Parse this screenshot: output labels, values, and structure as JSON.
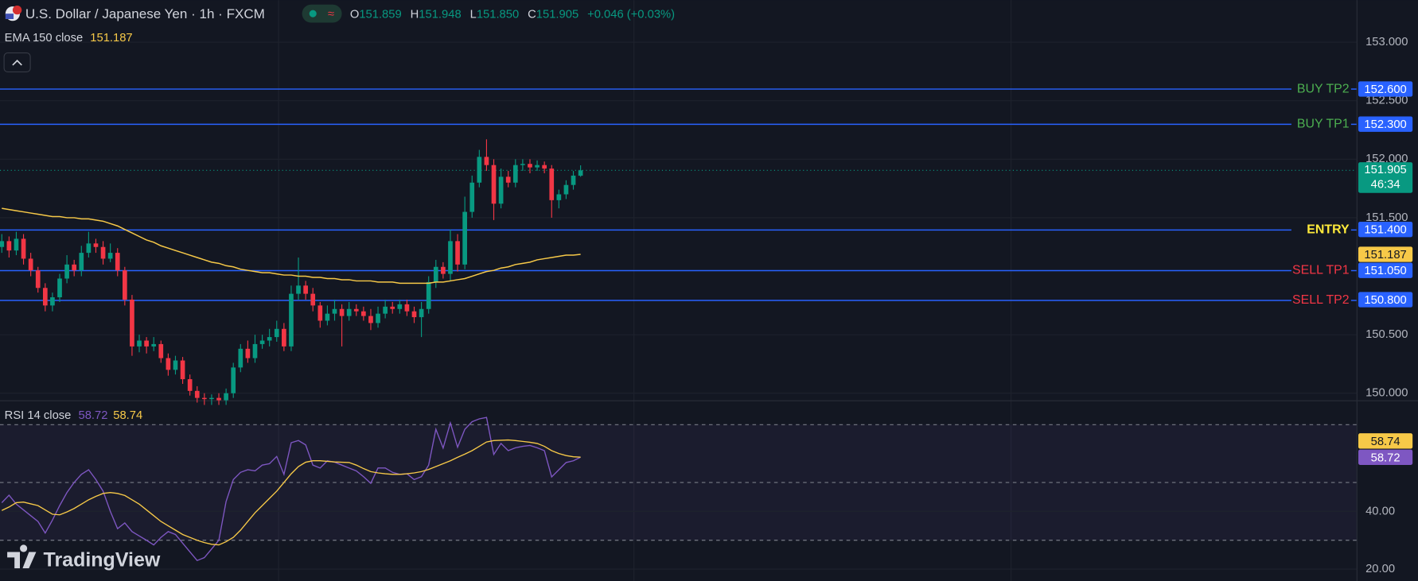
{
  "brand": "TradingView",
  "chart_data": [
    {
      "type": "candlestick",
      "title": "U.S. Dollar / Japanese Yen · 1h · FXCM",
      "ohlc": [
        {
          "key": "O",
          "label": "151.859"
        },
        {
          "key": "H",
          "label": "151.948"
        },
        {
          "key": "L",
          "label": "151.850"
        },
        {
          "key": "C",
          "label": "151.905"
        }
      ],
      "change": "+0.046 (+0.03%)",
      "open": [
        151.25,
        151.3,
        151.22,
        151.32,
        151.15,
        151.05,
        150.9,
        150.75,
        150.82,
        150.98,
        151.1,
        151.05,
        151.2,
        151.28,
        151.25,
        151.15,
        151.2,
        151.05,
        150.8,
        150.4,
        150.45,
        150.4,
        150.42,
        150.3,
        150.2,
        150.28,
        150.12,
        150.02,
        149.96,
        149.95,
        149.96,
        149.94,
        150.0,
        150.22,
        150.38,
        150.3,
        150.42,
        150.45,
        150.48,
        150.55,
        150.4,
        150.85,
        150.92,
        150.85,
        150.75,
        150.62,
        150.68,
        150.72,
        150.66,
        150.72,
        150.7,
        150.66,
        150.6,
        150.68,
        150.74,
        150.72,
        150.76,
        150.7,
        150.65,
        150.72,
        150.95,
        151.08,
        151.02,
        151.3,
        151.1,
        151.55,
        151.8,
        152.02,
        151.95,
        151.62,
        151.85,
        151.8,
        151.95,
        151.96,
        151.93,
        151.95,
        151.92,
        151.65,
        151.7,
        151.78,
        151.859
      ],
      "high": [
        151.36,
        151.34,
        151.38,
        151.36,
        151.2,
        151.08,
        150.94,
        150.86,
        151.02,
        151.18,
        151.14,
        151.26,
        151.38,
        151.32,
        151.3,
        151.28,
        151.24,
        151.08,
        150.84,
        150.5,
        150.48,
        150.48,
        150.45,
        150.34,
        150.32,
        150.31,
        150.16,
        150.06,
        150.0,
        149.99,
        150.0,
        150.04,
        150.26,
        150.42,
        150.45,
        150.5,
        150.5,
        150.55,
        150.62,
        150.6,
        150.92,
        151.16,
        150.96,
        150.9,
        150.78,
        150.75,
        150.8,
        150.76,
        150.78,
        150.76,
        150.74,
        150.72,
        150.74,
        150.8,
        150.78,
        150.8,
        150.8,
        150.74,
        150.78,
        151.0,
        151.14,
        151.12,
        151.4,
        151.36,
        151.68,
        151.86,
        152.08,
        152.17,
        152.0,
        151.92,
        151.9,
        152.0,
        152.0,
        152.0,
        151.99,
        151.98,
        151.95,
        151.74,
        151.82,
        151.9,
        151.948
      ],
      "low": [
        151.2,
        151.16,
        151.18,
        151.1,
        151.0,
        150.86,
        150.7,
        150.7,
        150.78,
        150.94,
        151.0,
        151.0,
        151.16,
        151.2,
        151.1,
        151.12,
        151.0,
        150.75,
        150.32,
        150.35,
        150.34,
        150.36,
        150.26,
        150.15,
        150.16,
        150.08,
        149.98,
        149.92,
        149.9,
        149.9,
        149.9,
        149.9,
        149.96,
        150.18,
        150.26,
        150.26,
        150.38,
        150.4,
        150.44,
        150.36,
        150.36,
        150.8,
        150.8,
        150.7,
        150.56,
        150.58,
        150.62,
        150.4,
        150.62,
        150.66,
        150.62,
        150.54,
        150.56,
        150.64,
        150.68,
        150.68,
        150.66,
        150.6,
        150.48,
        150.68,
        150.9,
        150.98,
        150.96,
        151.04,
        151.06,
        151.5,
        151.76,
        151.9,
        151.48,
        151.58,
        151.76,
        151.76,
        151.9,
        151.88,
        151.9,
        151.88,
        151.5,
        151.58,
        151.66,
        151.74,
        151.85
      ],
      "close": [
        151.3,
        151.22,
        151.32,
        151.15,
        151.05,
        150.9,
        150.75,
        150.82,
        150.98,
        151.1,
        151.05,
        151.2,
        151.28,
        151.25,
        151.15,
        151.2,
        151.05,
        150.8,
        150.4,
        150.45,
        150.4,
        150.42,
        150.3,
        150.2,
        150.28,
        150.12,
        150.02,
        149.96,
        149.95,
        149.96,
        149.94,
        150.0,
        150.22,
        150.38,
        150.3,
        150.42,
        150.45,
        150.48,
        150.55,
        150.4,
        150.85,
        150.92,
        150.85,
        150.75,
        150.62,
        150.68,
        150.72,
        150.66,
        150.72,
        150.7,
        150.66,
        150.6,
        150.68,
        150.74,
        150.72,
        150.76,
        150.7,
        150.65,
        150.72,
        150.95,
        151.08,
        151.02,
        151.3,
        151.1,
        151.55,
        151.8,
        152.02,
        151.95,
        151.62,
        151.85,
        151.8,
        151.95,
        151.96,
        151.93,
        151.95,
        151.92,
        151.65,
        151.7,
        151.78,
        151.86,
        151.905
      ],
      "up_color": "#089981",
      "down_color": "#f23645",
      "ema": {
        "name": "EMA 150 close",
        "color": "#f7c948",
        "last_label": "151.187",
        "values": [
          151.58,
          151.57,
          151.56,
          151.55,
          151.54,
          151.53,
          151.52,
          151.51,
          151.51,
          151.5,
          151.5,
          151.49,
          151.49,
          151.48,
          151.47,
          151.45,
          151.43,
          151.4,
          151.37,
          151.34,
          151.31,
          151.29,
          151.26,
          151.24,
          151.22,
          151.2,
          151.18,
          151.16,
          151.14,
          151.12,
          151.11,
          151.09,
          151.08,
          151.06,
          151.05,
          151.04,
          151.03,
          151.03,
          151.02,
          151.01,
          151.01,
          151.0,
          151.0,
          150.99,
          150.99,
          150.98,
          150.98,
          150.97,
          150.97,
          150.96,
          150.96,
          150.96,
          150.95,
          150.95,
          150.95,
          150.94,
          150.94,
          150.94,
          150.94,
          150.94,
          150.95,
          150.95,
          150.96,
          150.97,
          150.98,
          151.0,
          151.02,
          151.04,
          151.05,
          151.07,
          151.08,
          151.1,
          151.11,
          151.12,
          151.14,
          151.15,
          151.16,
          151.17,
          151.18,
          151.18,
          151.187
        ]
      },
      "levels": [
        {
          "name": "BUY TP2",
          "value": 152.6,
          "value_label": "152.600",
          "color": "#4caf50"
        },
        {
          "name": "BUY TP1",
          "value": 152.3,
          "value_label": "152.300",
          "color": "#4caf50"
        },
        {
          "name": "ENTRY",
          "value": 151.4,
          "value_label": "151.400",
          "color": "#ffeb3b"
        },
        {
          "name": "SELL TP1",
          "value": 151.05,
          "value_label": "151.050",
          "color": "#f23645"
        },
        {
          "name": "SELL TP2",
          "value": 150.8,
          "value_label": "150.800",
          "color": "#f23645"
        }
      ],
      "level_line_color": "#2962ff",
      "last": {
        "value": 151.905,
        "label": "151.905",
        "countdown": "46:34",
        "color": "#089981"
      },
      "ylim": [
        149.94,
        153.36
      ],
      "yticks": [
        {
          "value": 150,
          "label": "150.000"
        },
        {
          "value": 150.5,
          "label": "150.500"
        },
        {
          "value": 151.5,
          "label": "151.500"
        },
        {
          "value": 152,
          "label": "152.000"
        },
        {
          "value": 152.5,
          "label": "152.500"
        },
        {
          "value": 153,
          "label": "153.000"
        }
      ],
      "grid": true
    },
    {
      "type": "line",
      "title": "RSI 14 close",
      "series": [
        {
          "color": "#7e57c2",
          "last_label": "58.72",
          "values": [
            43.0,
            45.6,
            42.5,
            40.5,
            38.5,
            36.5,
            32.5,
            37,
            42,
            46.5,
            50,
            52.8,
            54.4,
            51,
            47,
            40,
            34,
            36,
            33,
            31.5,
            30,
            28.4,
            31,
            33,
            32,
            29,
            26,
            23,
            24,
            27,
            30,
            43.4,
            51,
            53.5,
            54.4,
            54,
            56,
            56.5,
            59,
            52.8,
            63.75,
            64.5,
            63,
            56,
            55,
            57.5,
            57,
            56,
            55,
            54,
            52,
            49.7,
            55,
            55,
            53.5,
            52.8,
            53,
            51,
            52,
            56,
            68.4,
            61.9,
            70.6,
            62.2,
            68.4,
            71,
            72,
            72.5,
            59.7,
            63.5,
            61,
            62,
            62.5,
            62.8,
            62,
            61,
            51.9,
            54.4,
            56.9,
            57.5,
            58.72
          ]
        },
        {
          "color": "#f7c948",
          "last_label": "58.74",
          "values": [
            40.3,
            41.5,
            43,
            43.2,
            42.6,
            42,
            40.5,
            39,
            38.8,
            39.8,
            41,
            42.5,
            44,
            45.2,
            46.2,
            46.5,
            46.2,
            45.5,
            44,
            42.5,
            40.5,
            38.5,
            36.5,
            35,
            33.5,
            32,
            31,
            30,
            29.2,
            28.6,
            28.4,
            29.5,
            31,
            33.5,
            36.5,
            39.5,
            42,
            44.5,
            47,
            50,
            53,
            55.5,
            57,
            57.5,
            57.5,
            57.3,
            57.1,
            57,
            56.9,
            56,
            54.8,
            53.75,
            53.3,
            53,
            52.8,
            52.8,
            53,
            53.3,
            53.75,
            54.5,
            55.5,
            56.5,
            57.5,
            58.7,
            59.8,
            61,
            62.5,
            64,
            64.5,
            64.6,
            64.7,
            64.5,
            64.2,
            63.9,
            63.5,
            62.5,
            61,
            60,
            59.3,
            58.9,
            58.74
          ]
        }
      ],
      "bands": [
        70,
        50,
        30
      ],
      "band_fill": "#7e57c2",
      "ylim": [
        15.94,
        78.44
      ],
      "yticks": [
        {
          "value": 40,
          "label": "40.00"
        },
        {
          "value": 20,
          "label": "20.00"
        }
      ],
      "grid": true
    }
  ]
}
